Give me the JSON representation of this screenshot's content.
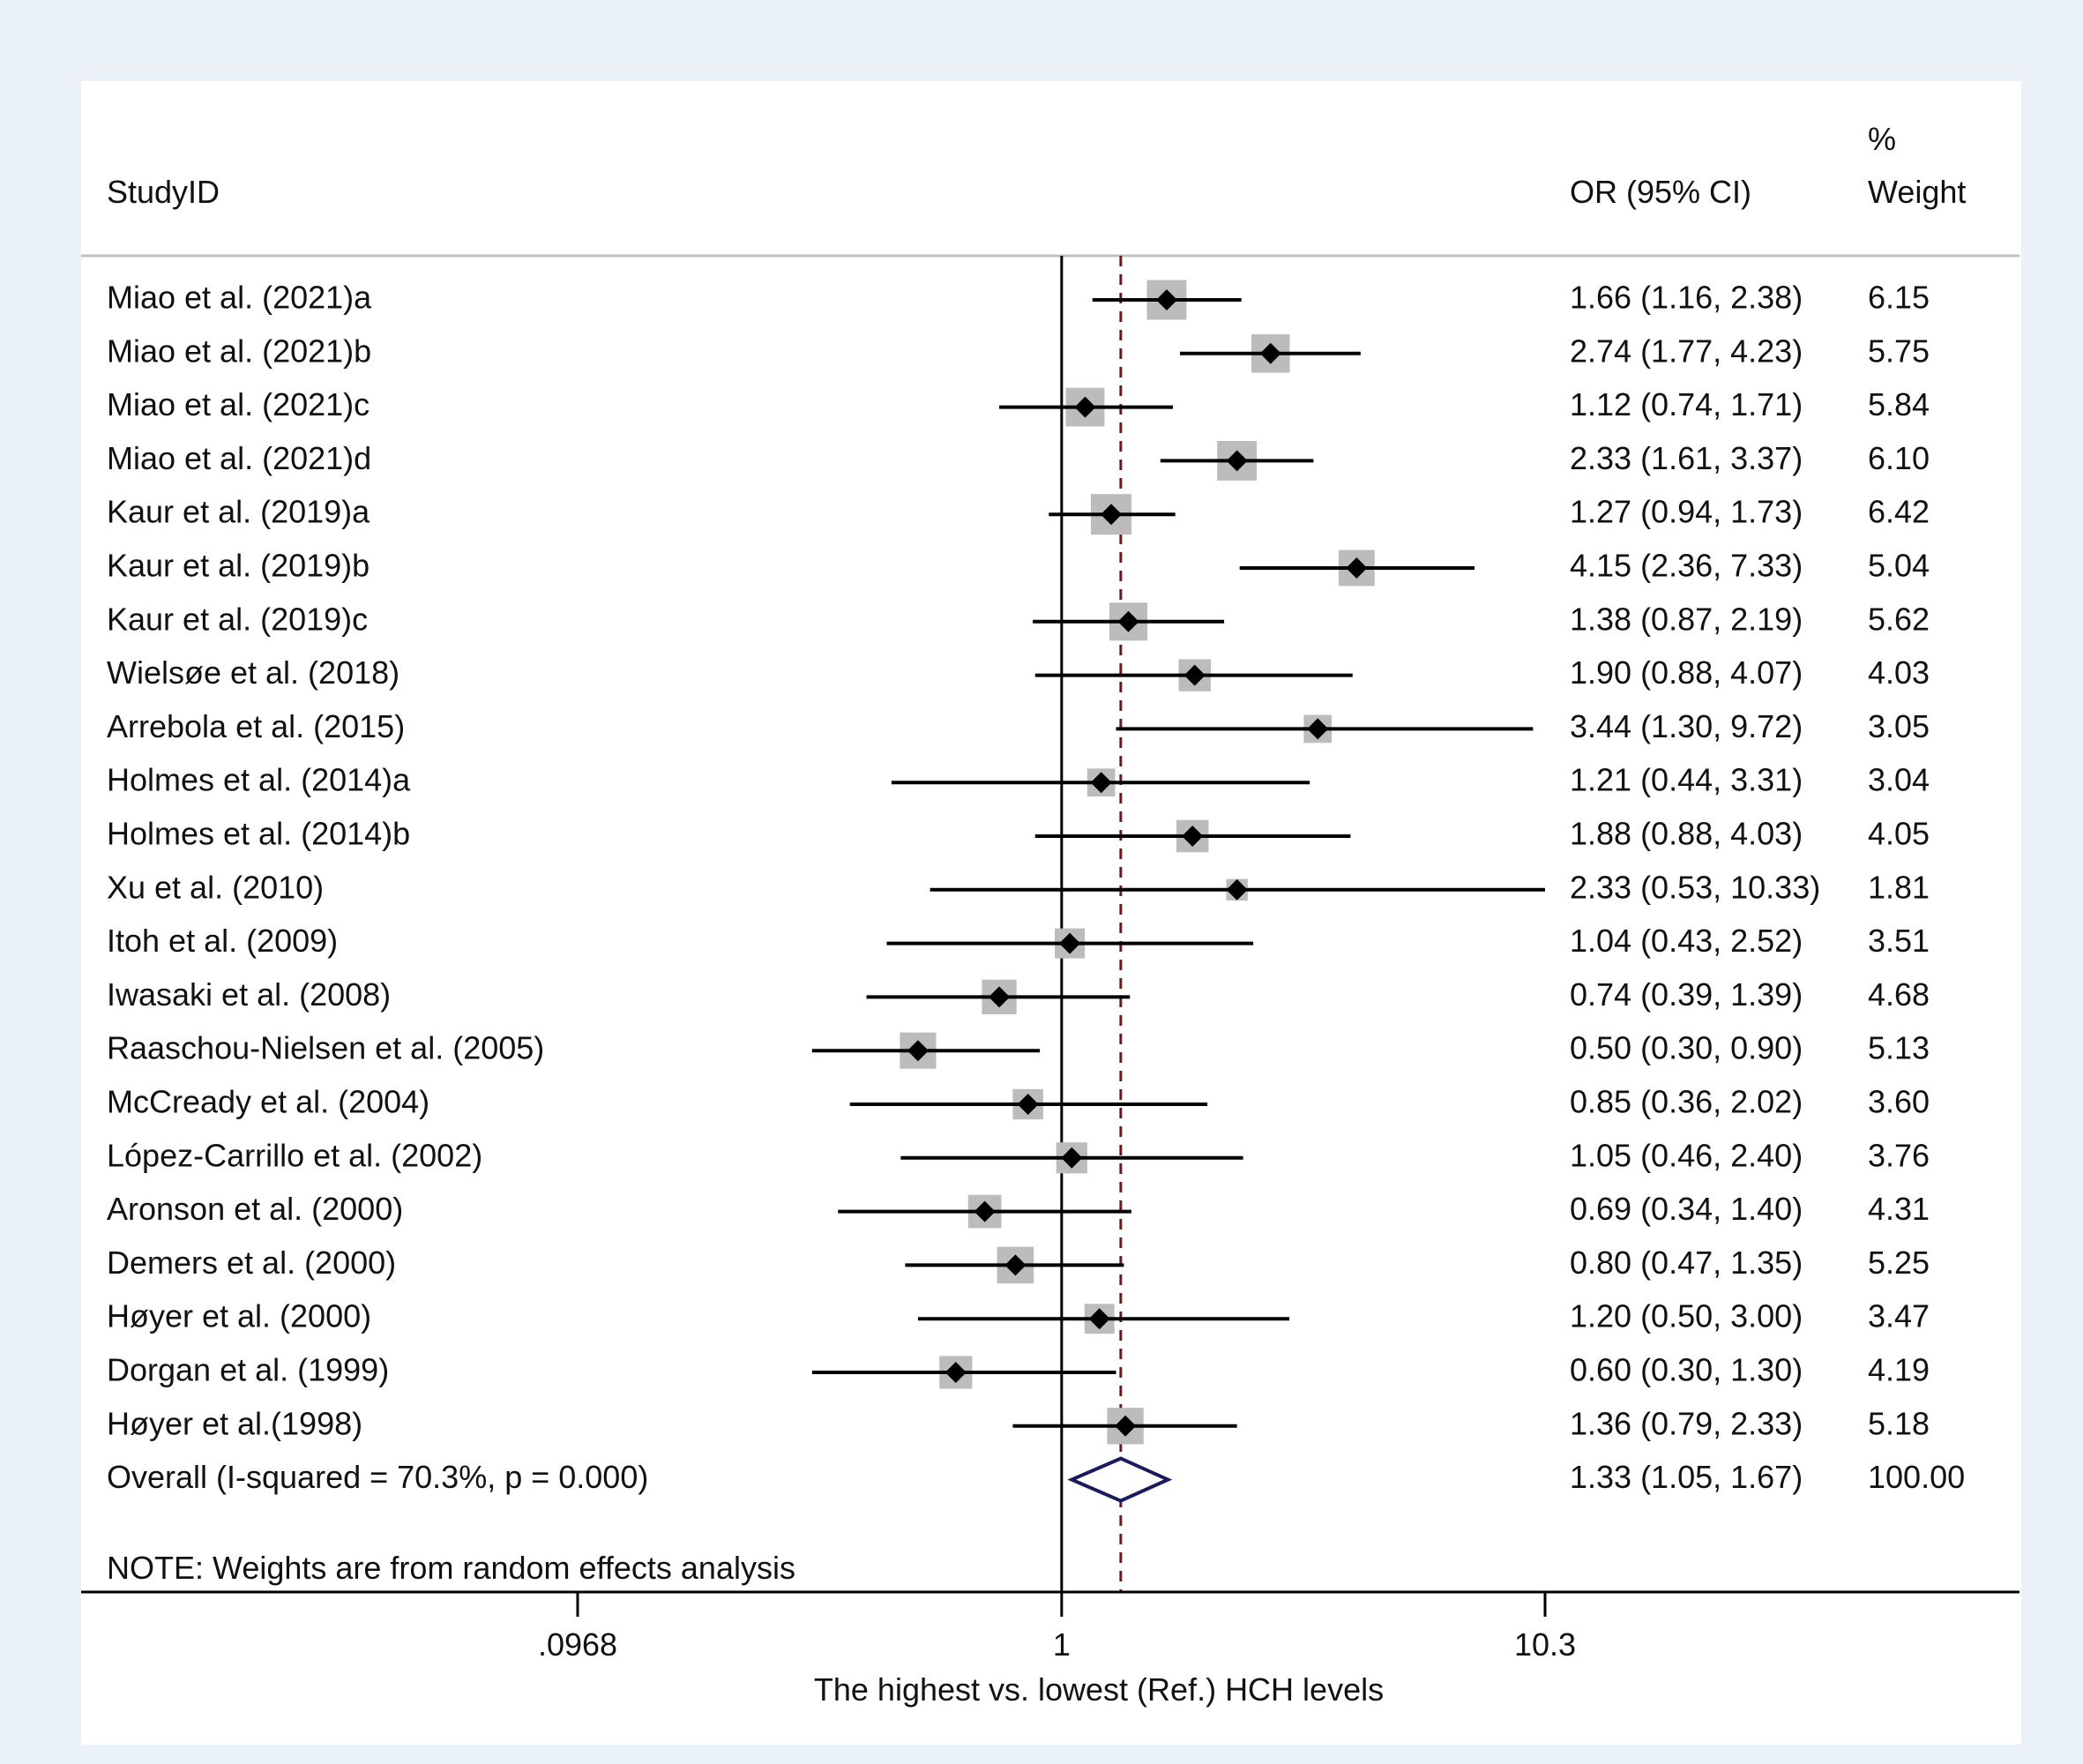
{
  "chart_data": {
    "type": "forest",
    "header": {
      "study": "StudyID",
      "effect": "OR (95% CI)",
      "weight_top": "%",
      "weight_bottom": "Weight"
    },
    "studies": [
      {
        "label": "Miao et al.  (2021)a",
        "or": 1.66,
        "lo": 1.16,
        "hi": 2.38,
        "ci_text": "1.66 (1.16, 2.38)",
        "weight": 6.15,
        "weight_text": "6.15"
      },
      {
        "label": "Miao et al.  (2021)b",
        "or": 2.74,
        "lo": 1.77,
        "hi": 4.23,
        "ci_text": "2.74 (1.77, 4.23)",
        "weight": 5.75,
        "weight_text": "5.75"
      },
      {
        "label": "Miao et al.  (2021)c",
        "or": 1.12,
        "lo": 0.74,
        "hi": 1.71,
        "ci_text": "1.12 (0.74, 1.71)",
        "weight": 5.84,
        "weight_text": "5.84"
      },
      {
        "label": "Miao et al.  (2021)d",
        "or": 2.33,
        "lo": 1.61,
        "hi": 3.37,
        "ci_text": "2.33 (1.61, 3.37)",
        "weight": 6.1,
        "weight_text": "6.10"
      },
      {
        "label": "Kaur et al. (2019)a",
        "or": 1.27,
        "lo": 0.94,
        "hi": 1.73,
        "ci_text": "1.27 (0.94, 1.73)",
        "weight": 6.42,
        "weight_text": "6.42"
      },
      {
        "label": "Kaur et al. (2019)b",
        "or": 4.15,
        "lo": 2.36,
        "hi": 7.33,
        "ci_text": "4.15 (2.36, 7.33)",
        "weight": 5.04,
        "weight_text": "5.04"
      },
      {
        "label": "Kaur et al. (2019)c",
        "or": 1.38,
        "lo": 0.87,
        "hi": 2.19,
        "ci_text": "1.38 (0.87, 2.19)",
        "weight": 5.62,
        "weight_text": "5.62"
      },
      {
        "label": "Wielsøe et al. (2018)",
        "or": 1.9,
        "lo": 0.88,
        "hi": 4.07,
        "ci_text": "1.90 (0.88, 4.07)",
        "weight": 4.03,
        "weight_text": "4.03"
      },
      {
        "label": "Arrebola et al. (2015)",
        "or": 3.44,
        "lo": 1.3,
        "hi": 9.72,
        "ci_text": "3.44 (1.30, 9.72)",
        "weight": 3.05,
        "weight_text": "3.05"
      },
      {
        "label": "Holmes et al. (2014)a",
        "or": 1.21,
        "lo": 0.44,
        "hi": 3.31,
        "ci_text": "1.21 (0.44, 3.31)",
        "weight": 3.04,
        "weight_text": "3.04"
      },
      {
        "label": "Holmes et al. (2014)b",
        "or": 1.88,
        "lo": 0.88,
        "hi": 4.03,
        "ci_text": "1.88 (0.88, 4.03)",
        "weight": 4.05,
        "weight_text": "4.05"
      },
      {
        "label": "Xu et al. (2010)",
        "or": 2.33,
        "lo": 0.53,
        "hi": 10.33,
        "ci_text": "2.33 (0.53, 10.33)",
        "weight": 1.81,
        "weight_text": "1.81"
      },
      {
        "label": "Itoh et al. (2009)",
        "or": 1.04,
        "lo": 0.43,
        "hi": 2.52,
        "ci_text": "1.04 (0.43, 2.52)",
        "weight": 3.51,
        "weight_text": "3.51"
      },
      {
        "label": "Iwasaki et al. (2008)",
        "or": 0.74,
        "lo": 0.39,
        "hi": 1.39,
        "ci_text": "0.74 (0.39, 1.39)",
        "weight": 4.68,
        "weight_text": "4.68"
      },
      {
        "label": "Raaschou-Nielsen et al. (2005)",
        "or": 0.5,
        "lo": 0.3,
        "hi": 0.9,
        "ci_text": "0.50 (0.30, 0.90)",
        "weight": 5.13,
        "weight_text": "5.13"
      },
      {
        "label": "McCready et al. (2004)",
        "or": 0.85,
        "lo": 0.36,
        "hi": 2.02,
        "ci_text": "0.85 (0.36, 2.02)",
        "weight": 3.6,
        "weight_text": "3.60"
      },
      {
        "label": "López-Carrillo et al. (2002)",
        "or": 1.05,
        "lo": 0.46,
        "hi": 2.4,
        "ci_text": "1.05 (0.46, 2.40)",
        "weight": 3.76,
        "weight_text": "3.76"
      },
      {
        "label": "Aronson et al. (2000)",
        "or": 0.69,
        "lo": 0.34,
        "hi": 1.4,
        "ci_text": "0.69 (0.34, 1.40)",
        "weight": 4.31,
        "weight_text": "4.31"
      },
      {
        "label": "Demers et al. (2000)",
        "or": 0.8,
        "lo": 0.47,
        "hi": 1.35,
        "ci_text": "0.80 (0.47, 1.35)",
        "weight": 5.25,
        "weight_text": "5.25"
      },
      {
        "label": "Høyer et al. (2000)",
        "or": 1.2,
        "lo": 0.5,
        "hi": 3.0,
        "ci_text": "1.20 (0.50, 3.00)",
        "weight": 3.47,
        "weight_text": "3.47"
      },
      {
        "label": "Dorgan et al. (1999)",
        "or": 0.6,
        "lo": 0.3,
        "hi": 1.3,
        "ci_text": "0.60 (0.30, 1.30)",
        "weight": 4.19,
        "weight_text": "4.19"
      },
      {
        "label": "Høyer et al.(1998)",
        "or": 1.36,
        "lo": 0.79,
        "hi": 2.33,
        "ci_text": "1.36 (0.79, 2.33)",
        "weight": 5.18,
        "weight_text": "5.18"
      }
    ],
    "overall": {
      "label": "Overall  (I-squared = 70.3%, p = 0.000)",
      "or": 1.33,
      "lo": 1.05,
      "hi": 1.67,
      "ci_text": "1.33 (1.05, 1.67)",
      "weight_text": "100.00"
    },
    "note": "NOTE: Weights are from random effects analysis",
    "axis": {
      "scale": "log",
      "min": 0.0968,
      "max": 10.3,
      "ticks": [
        0.0968,
        1,
        10.3
      ],
      "tick_labels": [
        ".0968",
        "1",
        "10.3"
      ],
      "label": "The highest vs. lowest (Ref.) HCH levels",
      "null_value": 1
    },
    "colors": {
      "background": "#eaf2f8",
      "plot_background": "#ffffff",
      "box": "#bcbcbc",
      "point": "#000000",
      "ci_line": "#000000",
      "overall_diamond": "#1a1a5e",
      "overall_line": "#6b1a1a"
    }
  }
}
